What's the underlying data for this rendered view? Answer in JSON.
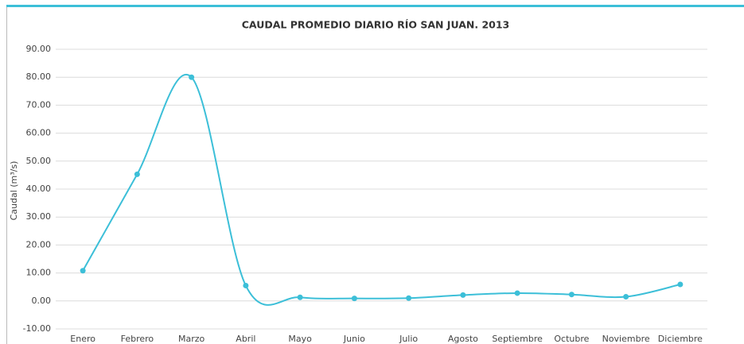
{
  "chart_data": {
    "type": "line",
    "title": "CAUDAL PROMEDIO DIARIO RÍO SAN JUAN. 2013",
    "y_label": "Caudal (m³/s)",
    "categories": [
      "Enero",
      "Febrero",
      "Marzo",
      "Abril",
      "Mayo",
      "Junio",
      "Julio",
      "Agosto",
      "Septiembre",
      "Octubre",
      "Noviembre",
      "Diciembre"
    ],
    "values": [
      10.8,
      45.3,
      80,
      5.5,
      1.3,
      0.9,
      1.0,
      2.1,
      2.8,
      2.3,
      1.5,
      5.9
    ],
    "color": "#3cbfd8",
    "smooth": true,
    "ylim": [
      -10,
      90
    ],
    "yticks": [
      {
        "value": -10,
        "label": "-10.00"
      },
      {
        "value": 0,
        "label": "0.00"
      },
      {
        "value": 10,
        "label": "10.00"
      },
      {
        "value": 20,
        "label": "20.00"
      },
      {
        "value": 30,
        "label": "30.00"
      },
      {
        "value": 40,
        "label": "40.00"
      },
      {
        "value": 50,
        "label": "50.00"
      },
      {
        "value": 60,
        "label": "60.00"
      },
      {
        "value": 70,
        "label": "70.00"
      },
      {
        "value": 80,
        "label": "80.00"
      },
      {
        "value": 90,
        "label": "90.00"
      }
    ],
    "grid": true
  }
}
